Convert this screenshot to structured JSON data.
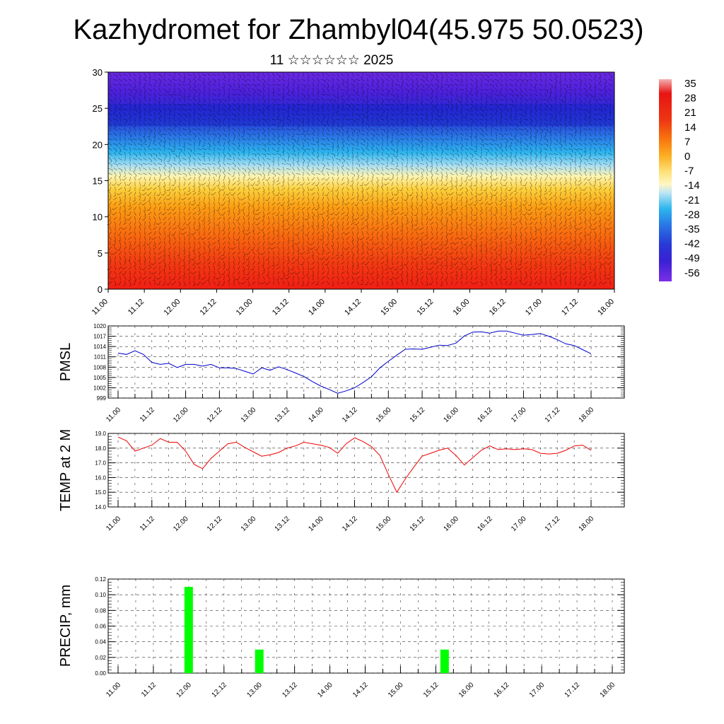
{
  "title": "Kazhydromet for Zhambyl04(45.975 50.0523)",
  "subtitle": "11 ☆☆☆☆☆☆ 2025",
  "time_labels": [
    "11.00",
    "11.12",
    "12.00",
    "12.12",
    "13.00",
    "13.12",
    "14.00",
    "14.12",
    "15.00",
    "15.12",
    "16.00",
    "16.12",
    "17.00",
    "17.12",
    "18.00"
  ],
  "chart_data": [
    {
      "type": "heatmap",
      "name": "cross-section",
      "ylim": [
        0,
        30
      ],
      "yticks": [
        0,
        5,
        10,
        15,
        20,
        25,
        30
      ],
      "colorbar": {
        "labels": [
          "35",
          "28",
          "21",
          "14",
          "7",
          "0",
          "-7",
          "-14",
          "-21",
          "-28",
          "-35",
          "-42",
          "-49",
          "-56"
        ],
        "colors": [
          "#f2a0a0",
          "#e01414",
          "#ea2a12",
          "#f5600e",
          "#fb9410",
          "#fcc02a",
          "#fff2a0",
          "#bfe8f5",
          "#28b8f0",
          "#2a7ee8",
          "#2a4fe0",
          "#2a2ad8",
          "#5218d8",
          "#7a2ae8"
        ]
      }
    },
    {
      "type": "line",
      "ylabel": "PMSL",
      "ylim": [
        999,
        1020
      ],
      "yticks": [
        "999",
        "1002",
        "1005",
        "1008",
        "1011",
        "1014",
        "1017",
        "1020"
      ],
      "color": "#0000cc",
      "values": [
        1012.1,
        1011.7,
        1012.8,
        1011.7,
        1009.4,
        1008.8,
        1009.1,
        1007.9,
        1008.8,
        1008.8,
        1008.3,
        1008.8,
        1007.8,
        1007.8,
        1007.6,
        1006.8,
        1006.0,
        1007.8,
        1007.1,
        1008.1,
        1007.3,
        1006.3,
        1005.3,
        1003.8,
        1002.5,
        1001.5,
        1000.4,
        1001.1,
        1002.0,
        1003.5,
        1005.2,
        1007.8,
        1009.7,
        1011.5,
        1013.2,
        1013.3,
        1013.2,
        1013.8,
        1014.4,
        1014.3,
        1015.0,
        1017.1,
        1018.2,
        1018.3,
        1017.9,
        1018.5,
        1018.5,
        1017.9,
        1017.3,
        1017.5,
        1017.8,
        1017.0,
        1016.0,
        1014.8,
        1014.3,
        1013.1,
        1011.9
      ]
    },
    {
      "type": "line",
      "ylabel": "TEMP at 2 M",
      "ylim": [
        14,
        19
      ],
      "yticks": [
        "14.0",
        "15.0",
        "16.0",
        "17.0",
        "18.0",
        "19.0"
      ],
      "color": "#ee0000",
      "values": [
        18.75,
        18.5,
        17.8,
        18.0,
        18.2,
        18.65,
        18.4,
        18.4,
        17.8,
        16.9,
        16.6,
        17.3,
        17.8,
        18.3,
        18.4,
        18.05,
        17.75,
        17.45,
        17.55,
        17.7,
        18.0,
        18.15,
        18.4,
        18.3,
        18.2,
        18.05,
        17.65,
        18.3,
        18.7,
        18.45,
        18.1,
        17.5,
        16.2,
        15.0,
        15.9,
        16.7,
        17.45,
        17.65,
        17.85,
        18.0,
        17.5,
        16.85,
        17.35,
        17.85,
        18.15,
        17.9,
        17.95,
        17.9,
        17.95,
        17.9,
        17.65,
        17.6,
        17.65,
        17.85,
        18.15,
        18.2,
        17.85
      ]
    },
    {
      "type": "bar",
      "ylabel": "PRECIP, mm",
      "ylim": [
        0,
        0.12
      ],
      "yticks": [
        "0.00",
        "0.02",
        "0.04",
        "0.06",
        "0.08",
        "0.10",
        "0.12"
      ],
      "color": "#00ff00",
      "bars": [
        {
          "time": 12.0,
          "value": 0.11
        },
        {
          "time": 13.0,
          "value": 0.03
        },
        {
          "time": 15.625,
          "value": 0.03
        }
      ]
    }
  ]
}
